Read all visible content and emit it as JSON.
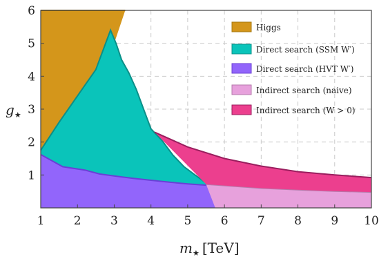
{
  "chart_data": {
    "type": "area",
    "xlabel_symbol": "m",
    "xlabel_sub": "★",
    "xlabel_unit": "[TeV]",
    "ylabel_symbol": "g",
    "ylabel_sub": "★",
    "xlim": [
      1,
      10
    ],
    "ylim": [
      0,
      6
    ],
    "xticks": [
      "1",
      "2",
      "3",
      "4",
      "5",
      "6",
      "7",
      "8",
      "9",
      "10"
    ],
    "yticks": [
      "1",
      "2",
      "3",
      "4",
      "5",
      "6"
    ],
    "grid": true,
    "legend_position": "top-right",
    "series": [
      {
        "name": "Higgs",
        "color": "#D4961B",
        "edge": "#A67810",
        "lower": [
          [
            1,
            1.75
          ],
          [
            1.5,
            2.6
          ],
          [
            2.0,
            3.4
          ],
          [
            2.5,
            4.2
          ],
          [
            3.0,
            5.0
          ],
          [
            3.3,
            6.0
          ]
        ],
        "upper": [
          [
            1,
            6.0
          ],
          [
            3.3,
            6.0
          ]
        ]
      },
      {
        "name": "Direct search (SSM W′)",
        "color": "#0AC4BA",
        "edge": "#0B8F88",
        "upper": [
          [
            1,
            1.75
          ],
          [
            1.5,
            2.6
          ],
          [
            2.0,
            3.4
          ],
          [
            2.5,
            4.2
          ],
          [
            2.9,
            5.4
          ],
          [
            3.05,
            5.0
          ],
          [
            3.2,
            4.5
          ],
          [
            3.4,
            4.1
          ],
          [
            3.6,
            3.6
          ],
          [
            3.8,
            3.0
          ],
          [
            4.0,
            2.4
          ],
          [
            4.3,
            2.05
          ],
          [
            4.6,
            1.6
          ],
          [
            4.9,
            1.25
          ],
          [
            5.2,
            1.0
          ],
          [
            5.45,
            0.8
          ],
          [
            5.75,
            0.65
          ]
        ],
        "lower": [
          [
            1,
            1.62
          ],
          [
            1.6,
            1.25
          ],
          [
            2.2,
            1.15
          ],
          [
            2.6,
            1.03
          ],
          [
            3,
            0.97
          ],
          [
            3.5,
            0.9
          ],
          [
            4,
            0.84
          ],
          [
            4.5,
            0.78
          ],
          [
            5,
            0.73
          ],
          [
            5.5,
            0.69
          ],
          [
            5.75,
            0.67
          ]
        ]
      },
      {
        "name": "Direct search (HVT W′)",
        "color": "#9265FB",
        "edge": "#6A3FD6",
        "upper": [
          [
            1,
            1.62
          ],
          [
            1.6,
            1.25
          ],
          [
            2.2,
            1.15
          ],
          [
            2.6,
            1.03
          ],
          [
            3,
            0.97
          ],
          [
            3.5,
            0.9
          ],
          [
            4,
            0.84
          ],
          [
            4.5,
            0.78
          ],
          [
            5,
            0.73
          ],
          [
            5.5,
            0.69
          ],
          [
            5.75,
            0.67
          ]
        ],
        "lower": [
          [
            1,
            0.0
          ],
          [
            5.75,
            0.0
          ]
        ]
      },
      {
        "name": "Indirect search (naive)",
        "color": "#E7A1DC",
        "edge": "#B57AAB",
        "upper": [
          [
            5.5,
            0.72
          ],
          [
            6,
            0.68
          ],
          [
            7,
            0.6
          ],
          [
            8,
            0.55
          ],
          [
            9,
            0.51
          ],
          [
            10,
            0.48
          ]
        ],
        "lower": [
          [
            5.75,
            0.0
          ],
          [
            10,
            0.0
          ]
        ]
      },
      {
        "name": "Indirect search (W > 0)",
        "color": "#EC3F8E",
        "edge": "#9A1E5E",
        "upper": [
          [
            4.1,
            2.3
          ],
          [
            5,
            1.85
          ],
          [
            6,
            1.5
          ],
          [
            7,
            1.27
          ],
          [
            8,
            1.1
          ],
          [
            9,
            1.0
          ],
          [
            10,
            0.92
          ]
        ],
        "lower": [
          [
            5.5,
            0.72
          ],
          [
            6,
            0.68
          ],
          [
            7,
            0.6
          ],
          [
            8,
            0.55
          ],
          [
            9,
            0.51
          ],
          [
            10,
            0.48
          ]
        ]
      }
    ]
  }
}
